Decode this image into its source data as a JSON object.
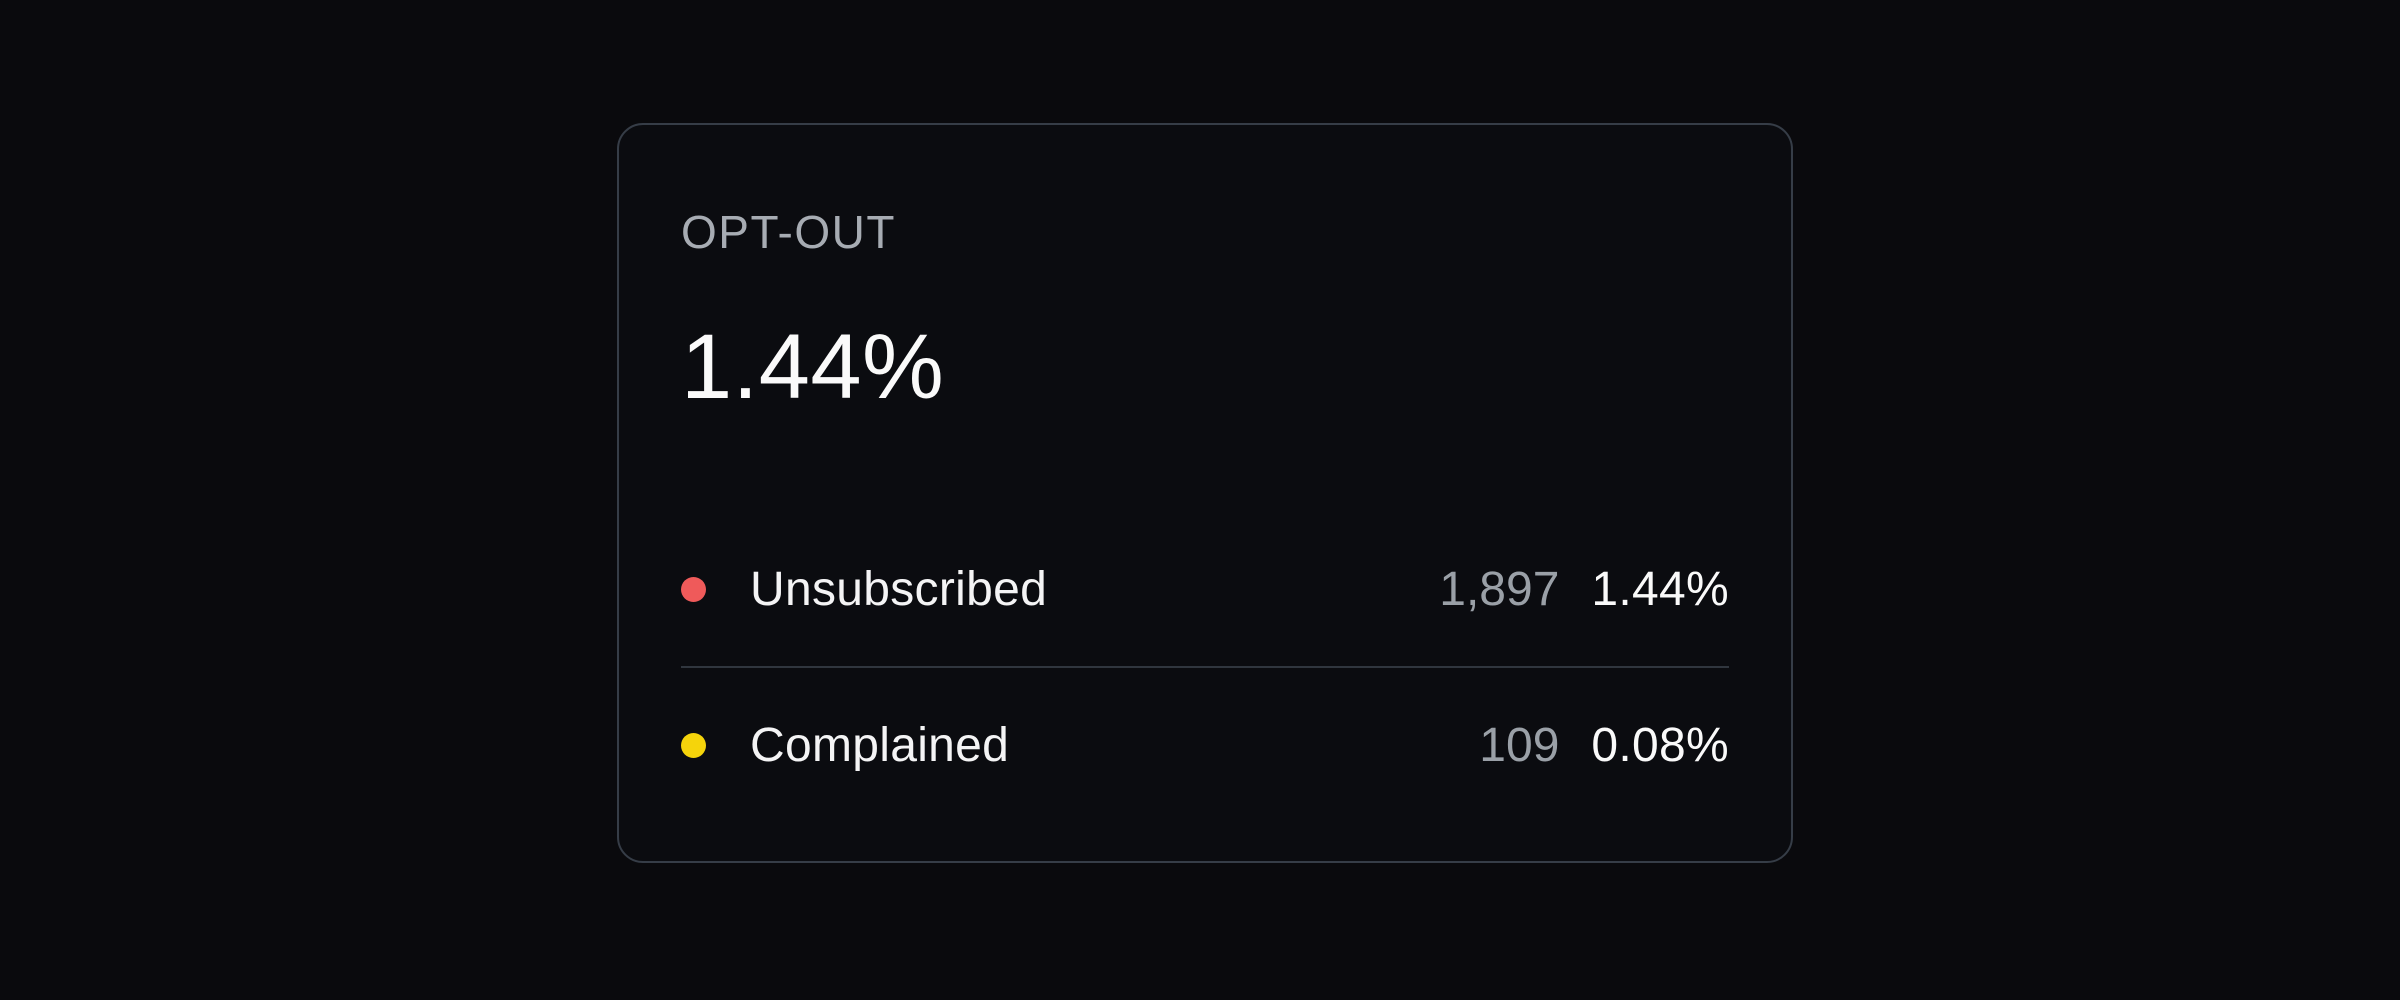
{
  "card": {
    "kicker": "OPT-OUT",
    "headline_value": "1.44%",
    "rows": [
      {
        "label": "Unsubscribed",
        "count": "1,897",
        "rate": "1.44%",
        "dot_color": "#ef5a5a",
        "dot_style": "background:#ef5a5a"
      },
      {
        "label": "Complained",
        "count": "109",
        "rate": "0.08%",
        "dot_color": "#f5d40b",
        "dot_style": "background:#f5d40b"
      }
    ]
  },
  "colors": {
    "page_background": "#0a0a0d",
    "card_background": "#0b0c10",
    "card_border": "#363d47",
    "divider": "#30363e",
    "kicker_text": "#a7acb3",
    "primary_text": "#fafafa",
    "label_text": "#f4f4f5",
    "muted_number_text": "#9aa0a7",
    "unsubscribed_dot": "#ef5a5a",
    "complained_dot": "#f5d40b"
  },
  "chart_data": {
    "type": "table",
    "title": "OPT-OUT",
    "headline_rate_percent": 1.44,
    "categories": [
      "Unsubscribed",
      "Complained"
    ],
    "series": [
      {
        "name": "count",
        "values": [
          1897,
          109
        ]
      },
      {
        "name": "rate_percent",
        "values": [
          1.44,
          0.08
        ]
      }
    ],
    "legend_colors": [
      "#ef5a5a",
      "#f5d40b"
    ]
  }
}
